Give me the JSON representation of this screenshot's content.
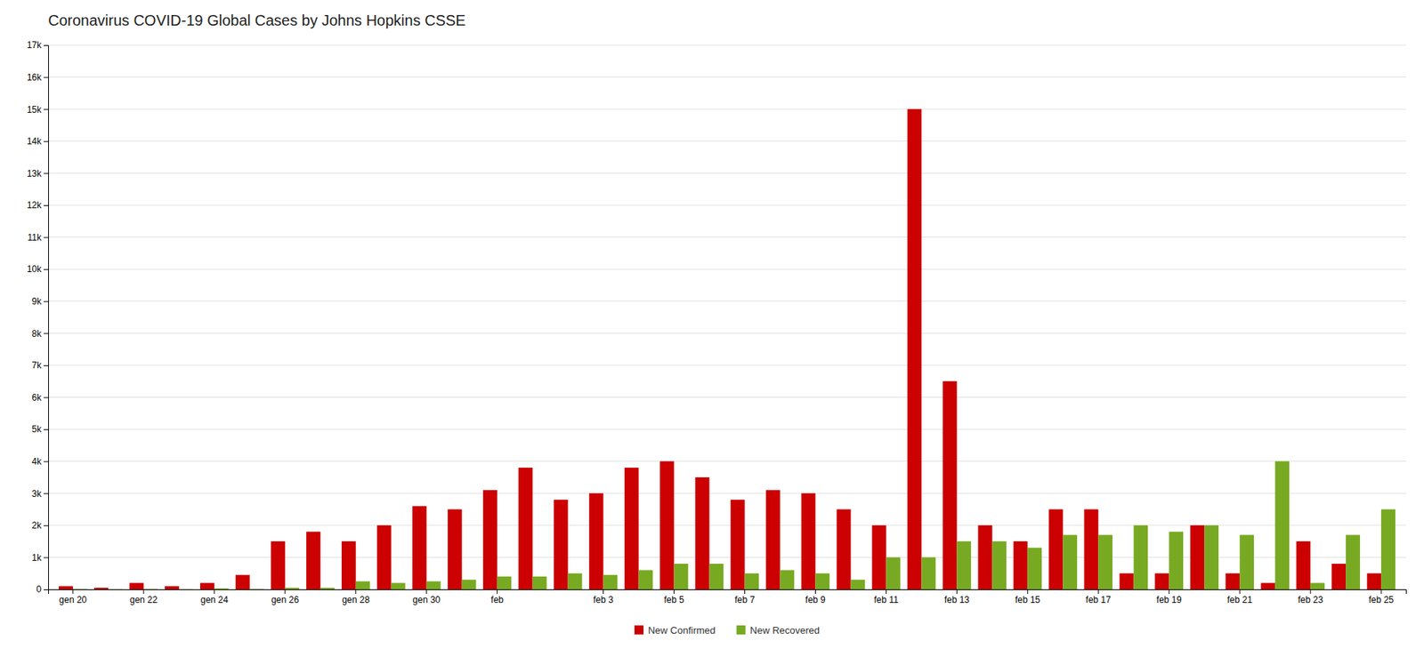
{
  "chart_data": {
    "type": "bar",
    "title": "Coronavirus COVID-19 Global Cases by Johns Hopkins CSSE",
    "categories": [
      "gen 20",
      null,
      "gen 22",
      null,
      "gen 24",
      null,
      "gen 26",
      null,
      "gen 28",
      null,
      "gen 30",
      null,
      "feb",
      null,
      null,
      "feb 3",
      null,
      "feb 5",
      null,
      "feb 7",
      null,
      "feb 9",
      null,
      "feb 11",
      null,
      "feb 13",
      null,
      "feb 15",
      null,
      "feb 17",
      null,
      "feb 19",
      null,
      "feb 21",
      null,
      "feb 23",
      null,
      "feb 25"
    ],
    "series": [
      {
        "name": "New Confirmed",
        "color": "#cc0000",
        "values": [
          100,
          50,
          200,
          100,
          200,
          450,
          1500,
          1800,
          1500,
          2000,
          2600,
          2500,
          3100,
          3800,
          2800,
          3000,
          3800,
          4000,
          3500,
          2800,
          3100,
          3000,
          2500,
          2000,
          15000,
          6500,
          2000,
          1500,
          2500,
          2500,
          500,
          500,
          2000,
          500,
          200,
          1500,
          800,
          500
        ]
      },
      {
        "name": "New Recovered",
        "color": "#77aa22",
        "values": [
          10,
          5,
          10,
          5,
          30,
          10,
          50,
          50,
          250,
          200,
          250,
          300,
          400,
          400,
          500,
          450,
          600,
          800,
          800,
          500,
          600,
          500,
          300,
          1000,
          1000,
          1500,
          1500,
          1300,
          1700,
          1700,
          2000,
          1800,
          2000,
          1700,
          4000,
          200,
          1700,
          2500
        ]
      }
    ],
    "ylim": [
      0,
      17000
    ],
    "yticks": [
      0,
      {
        "value": 1000,
        "label": "1k"
      },
      {
        "value": 2000,
        "label": "2k"
      },
      {
        "value": 3000,
        "label": "3k"
      },
      {
        "value": 4000,
        "label": "4k"
      },
      {
        "value": 5000,
        "label": "5k"
      },
      {
        "value": 6000,
        "label": "6k"
      },
      {
        "value": 7000,
        "label": "7k"
      },
      {
        "value": 8000,
        "label": "8k"
      },
      {
        "value": 9000,
        "label": "9k"
      },
      {
        "value": 10000,
        "label": "10k"
      },
      {
        "value": 11000,
        "label": "11k"
      },
      {
        "value": 12000,
        "label": "12k"
      },
      {
        "value": 13000,
        "label": "13k"
      },
      {
        "value": 14000,
        "label": "14k"
      },
      {
        "value": 15000,
        "label": "15k"
      },
      {
        "value": 16000,
        "label": "16k"
      },
      {
        "value": 17000,
        "label": "17k"
      }
    ],
    "grid": true,
    "legend": "bottom"
  }
}
